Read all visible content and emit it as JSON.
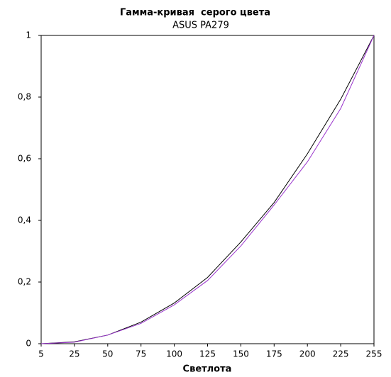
{
  "chart_data": {
    "type": "line",
    "title": "Гамма-кривая  серого цвета",
    "subtitle": "ASUS PA279",
    "x_label": "Светлота",
    "categories": [
      5,
      25,
      50,
      75,
      100,
      125,
      150,
      175,
      200,
      225,
      255
    ],
    "series": [
      {
        "color": "#000000",
        "values": [
          0,
          0.006,
          0.028,
          0.07,
          0.132,
          0.215,
          0.33,
          0.458,
          0.616,
          0.793,
          1
        ]
      },
      {
        "color": "#9933cc",
        "values": [
          0,
          0.005,
          0.028,
          0.066,
          0.126,
          0.205,
          0.317,
          0.45,
          0.59,
          0.763,
          1
        ]
      }
    ],
    "ylim": [
      0,
      1
    ],
    "yticks": [
      0,
      {
        "value": 0.2,
        "label": "0,2"
      },
      {
        "value": 0.4,
        "label": "0,4"
      },
      {
        "value": 0.6,
        "label": "0,6"
      },
      {
        "value": 0.8,
        "label": "0,8"
      },
      1
    ],
    "grid": false
  }
}
